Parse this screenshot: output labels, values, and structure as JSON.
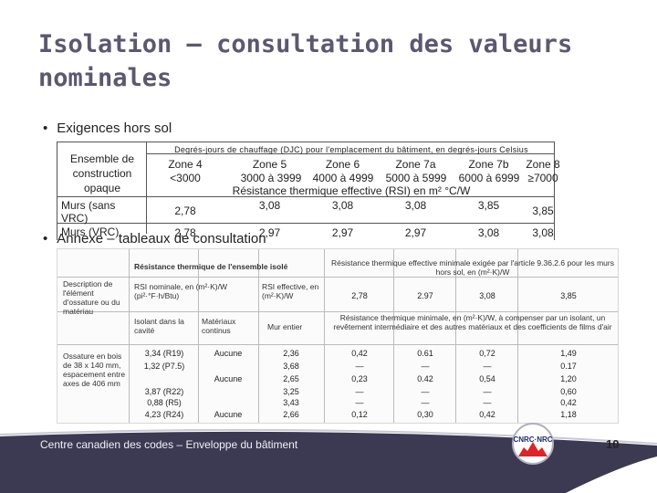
{
  "slide": {
    "title": "Isolation – consultation des valeurs nominales",
    "bullets": [
      "Exigences hors sol",
      "Annexe – tableaux de consultation"
    ],
    "footer_text": "Centre canadien des codes – Enveloppe du bâtiment",
    "page_number": "10",
    "logo_text": "CNRC·NRC"
  },
  "top_table": {
    "header": "Degrés-jours de chauffage (DJC) pour l'emplacement du bâtiment, en degrés-jours Celsius",
    "stub": "Ensemble de construction opaque",
    "zones": [
      "Zone 4",
      "Zone 5",
      "Zone 6",
      "Zone 7a",
      "Zone 7b",
      "Zone 8"
    ],
    "ranges": [
      "<3000",
      "3000 à 3999",
      "4000 à 4999",
      "5000 à 5999",
      "6000 à 6999",
      "≥7000"
    ],
    "rsi_label": "Résistance thermique effective (RSI) en m² °C/W",
    "rows": [
      {
        "label": "Murs (sans VRC)",
        "values": [
          "2,78",
          "3,08",
          "3,08",
          "3,08",
          "3,85",
          "3,85"
        ]
      },
      {
        "label": "Murs (VRC)",
        "values": [
          "2,78",
          "2,97",
          "2,97",
          "2,97",
          "3,08",
          "3,08"
        ]
      }
    ]
  },
  "scan_table": {
    "header_left": "Résistance thermique de l'ensemble isolé",
    "header_right": "Résistance thermique effective minimale exigée par l'article 9.36.2.6 pour les murs hors sol, en (m²·K)/W",
    "desc_label": "Description de l'élément d'ossature ou du matériau",
    "rsi_nominal": "RSI nominale, en (m²·K)/W (pi²·°F·h/Btu)",
    "rsi_effective": "RSI effective, en (m²·K)/W",
    "top_values": [
      "2,78",
      "2.97",
      "3,08",
      "3,85"
    ],
    "cavity_label": "Isolant dans la cavité",
    "continuous_label": "Matériaux continus",
    "wall_label": "Mur entier",
    "min_text": "Résistance thermique minimale, en (m²·K)/W, à compenser par un isolant, un revêtement intermédiaire et des autres matériaux et des coefficients de films d'air",
    "framing_label": "Ossature en bois de 38 x 140 mm, espacement entre axes de 406 mm",
    "rows": [
      {
        "nominal": "3,34 (R19)",
        "continuous": "Aucune",
        "wall": "2,36",
        "c1": "0,42",
        "c2": "0.61",
        "c3": "0,72",
        "c4": "1,49"
      },
      {
        "nominal": "1,32 (P7.5)",
        "continuous": "",
        "wall": "3,68",
        "c1": "—",
        "c2": "—",
        "c3": "—",
        "c4": "0.17"
      },
      {
        "nominal": "",
        "continuous": "Aucune",
        "wall": "2,65",
        "c1": "0,23",
        "c2": "0.42",
        "c3": "0,54",
        "c4": "1,20"
      },
      {
        "nominal": "3,87 (R22)",
        "continuous": "",
        "wall": "3,25",
        "c1": "—",
        "c2": "—",
        "c3": "—",
        "c4": "0,60"
      },
      {
        "nominal": "0,88 (R5)",
        "continuous": "",
        "wall": "3,43",
        "c1": "—",
        "c2": "—",
        "c3": "—",
        "c4": "0,42"
      },
      {
        "nominal": "4,23 (R24)",
        "continuous": "Aucune",
        "wall": "2,66",
        "c1": "0,12",
        "c2": "0,30",
        "c3": "0,42",
        "c4": "1,18"
      }
    ]
  },
  "colors": {
    "title": "#5b5870",
    "footer": "#3c3a52",
    "accent": "#d8262b"
  }
}
